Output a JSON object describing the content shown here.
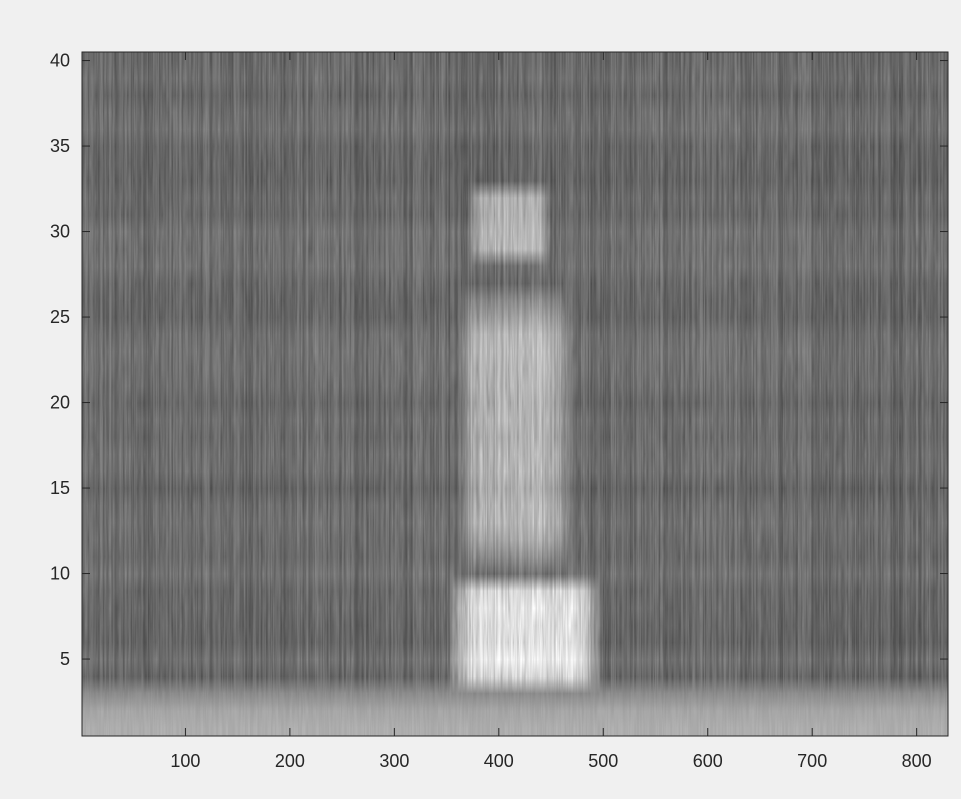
{
  "chart_data": {
    "type": "heatmap",
    "title": "",
    "xlabel": "",
    "ylabel": "",
    "colormap": "gray",
    "xlim": [
      1,
      830
    ],
    "ylim": [
      0.5,
      40.5
    ],
    "n_columns": 830,
    "n_rows": 40,
    "x_ticks": [
      100,
      200,
      300,
      400,
      500,
      600,
      700,
      800
    ],
    "y_ticks": [
      5,
      10,
      15,
      20,
      25,
      30,
      35,
      40
    ],
    "grid": false,
    "colors": {
      "figure_background": "#f0f0f0",
      "axes_border": "#262626",
      "tick_text": "#262626"
    },
    "bright_regions": [
      {
        "x_range": [
          350,
          500
        ],
        "y_range": [
          3,
          10
        ],
        "level": 0.9
      },
      {
        "x_range": [
          360,
          470
        ],
        "y_range": [
          10,
          27
        ],
        "level": 0.7
      },
      {
        "x_range": [
          370,
          450
        ],
        "y_range": [
          28,
          33
        ],
        "level": 0.7
      }
    ],
    "bottom_band": {
      "y_range": [
        0.5,
        2.5
      ],
      "level": 0.68
    },
    "background_level": 0.42
  }
}
